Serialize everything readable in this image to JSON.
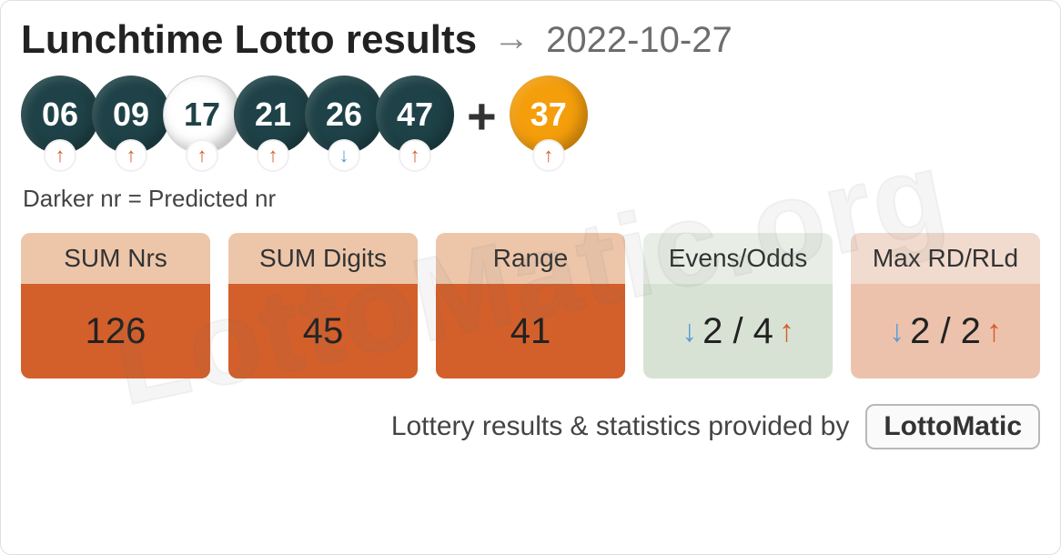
{
  "watermark": "LottoMatic.org",
  "header": {
    "title": "Lunchtime Lotto results",
    "date": "2022-10-27"
  },
  "colors": {
    "ball_dark_bg": "#1e4247",
    "ball_dark_fg": "#ffffff",
    "ball_light_bg": "#ffffff",
    "ball_light_fg": "#1e4247",
    "bonus_bg": "#f59e0b",
    "bonus_fg": "#ffffff",
    "trend_up": "#d35f2b",
    "trend_down": "#5b9bd5",
    "stat_orange_head": "#edc6aa",
    "stat_orange_body": "#d35f2b",
    "stat_green_head": "#e8eee6",
    "stat_green_body": "#d8e2d4",
    "stat_pink_head": "#f1dbce",
    "stat_pink_body": "#ecc2ad"
  },
  "balls": {
    "main": [
      {
        "value": "06",
        "style": "dark",
        "trend": "up"
      },
      {
        "value": "09",
        "style": "dark",
        "trend": "up"
      },
      {
        "value": "17",
        "style": "light",
        "trend": "up"
      },
      {
        "value": "21",
        "style": "dark",
        "trend": "up"
      },
      {
        "value": "26",
        "style": "dark",
        "trend": "down"
      },
      {
        "value": "47",
        "style": "dark",
        "trend": "up"
      }
    ],
    "plus": "+",
    "bonus": {
      "value": "37",
      "trend": "up"
    }
  },
  "legend": "Darker nr = Predicted nr",
  "stats": [
    {
      "label": "SUM Nrs",
      "value": "126",
      "variant": "orange"
    },
    {
      "label": "SUM Digits",
      "value": "45",
      "variant": "orange"
    },
    {
      "label": "Range",
      "value": "41",
      "variant": "orange"
    },
    {
      "label": "Evens/Odds",
      "value": "2 / 4",
      "variant": "green",
      "left_trend": "down",
      "right_trend": "up"
    },
    {
      "label": "Max RD/RLd",
      "value": "2 / 2",
      "variant": "pink",
      "left_trend": "down",
      "right_trend": "up"
    }
  ],
  "footer": {
    "text": "Lottery results & statistics provided by",
    "badge": "LottoMatic"
  }
}
